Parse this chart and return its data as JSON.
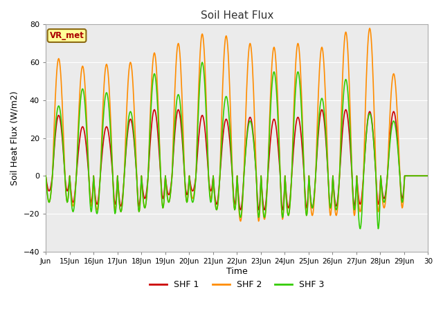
{
  "title": "Soil Heat Flux",
  "xlabel": "Time",
  "ylabel": "Soil Heat Flux (W/m2)",
  "ylim": [
    -40,
    80
  ],
  "yticks": [
    -40,
    -20,
    0,
    20,
    40,
    60,
    80
  ],
  "xtick_labels": [
    "Jun",
    "15Jun",
    "16Jun",
    "17Jun",
    "18Jun",
    "19Jun",
    "20Jun",
    "21Jun",
    "22Jun",
    "23Jun",
    "24Jun",
    "25Jun",
    "26Jun",
    "27Jun",
    "28Jun",
    "29Jun",
    "30"
  ],
  "series": {
    "SHF 1": {
      "color": "#cc0000",
      "linewidth": 1.2
    },
    "SHF 2": {
      "color": "#ff8c00",
      "linewidth": 1.2
    },
    "SHF 3": {
      "color": "#33cc00",
      "linewidth": 1.2
    }
  },
  "fig_bg_color": "#ffffff",
  "plot_bg_color": "#ebebeb",
  "grid_color": "#ffffff",
  "annotation_text": "VR_met",
  "annotation_bg": "#ffff99",
  "annotation_border": "#8b6914",
  "n_days": 16,
  "shf1_amps": [
    32,
    26,
    26,
    30,
    35,
    35,
    32,
    30,
    31,
    30,
    31,
    35,
    35,
    34,
    34,
    0
  ],
  "shf2_amps": [
    62,
    58,
    59,
    60,
    65,
    70,
    75,
    74,
    70,
    68,
    70,
    68,
    76,
    78,
    54,
    0
  ],
  "shf3_amps": [
    37,
    46,
    44,
    34,
    54,
    43,
    60,
    42,
    29,
    55,
    55,
    41,
    51,
    33,
    29,
    0
  ],
  "shf1_mins": [
    -8,
    -14,
    -15,
    -16,
    -12,
    -10,
    -8,
    -15,
    -18,
    -18,
    -17,
    -17,
    -16,
    -15,
    -12,
    0
  ],
  "shf2_mins": [
    -14,
    -16,
    -18,
    -19,
    -17,
    -14,
    -12,
    -18,
    -24,
    -23,
    -21,
    -21,
    -21,
    -19,
    -17,
    0
  ],
  "shf3_mins": [
    -14,
    -19,
    -20,
    -19,
    -17,
    -14,
    -14,
    -18,
    -22,
    -22,
    -21,
    -17,
    -18,
    -28,
    -14,
    0
  ],
  "rise": 0.28,
  "fall": 0.8
}
